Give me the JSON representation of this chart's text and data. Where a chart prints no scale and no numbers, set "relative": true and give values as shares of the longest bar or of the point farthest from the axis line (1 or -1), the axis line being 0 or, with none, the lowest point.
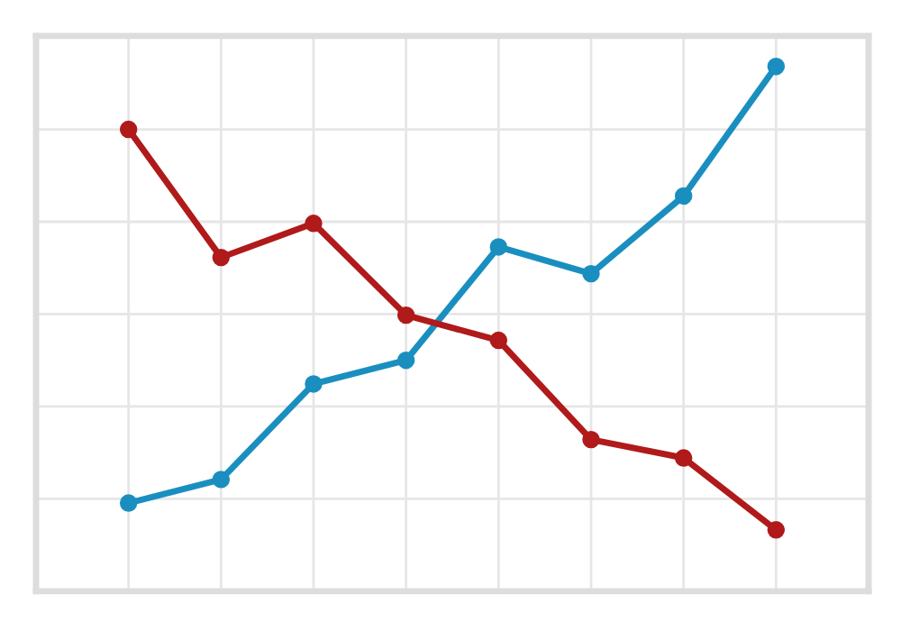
{
  "chart_data": {
    "type": "line",
    "relative": true,
    "categories": [
      null,
      null,
      null,
      null,
      null,
      null,
      null,
      null
    ],
    "series": [
      {
        "color": "#1a8fbf",
        "values": [
          0.168,
          0.213,
          0.395,
          0.44,
          0.656,
          0.605,
          0.753,
          1
        ]
      },
      {
        "color": "#b01a1a",
        "values": [
          0.88,
          0.636,
          0.701,
          0.526,
          0.478,
          0.289,
          0.254,
          0.117
        ]
      }
    ],
    "grid": true,
    "marker": "circle",
    "line_style": "solid",
    "tick_labels": false
  }
}
